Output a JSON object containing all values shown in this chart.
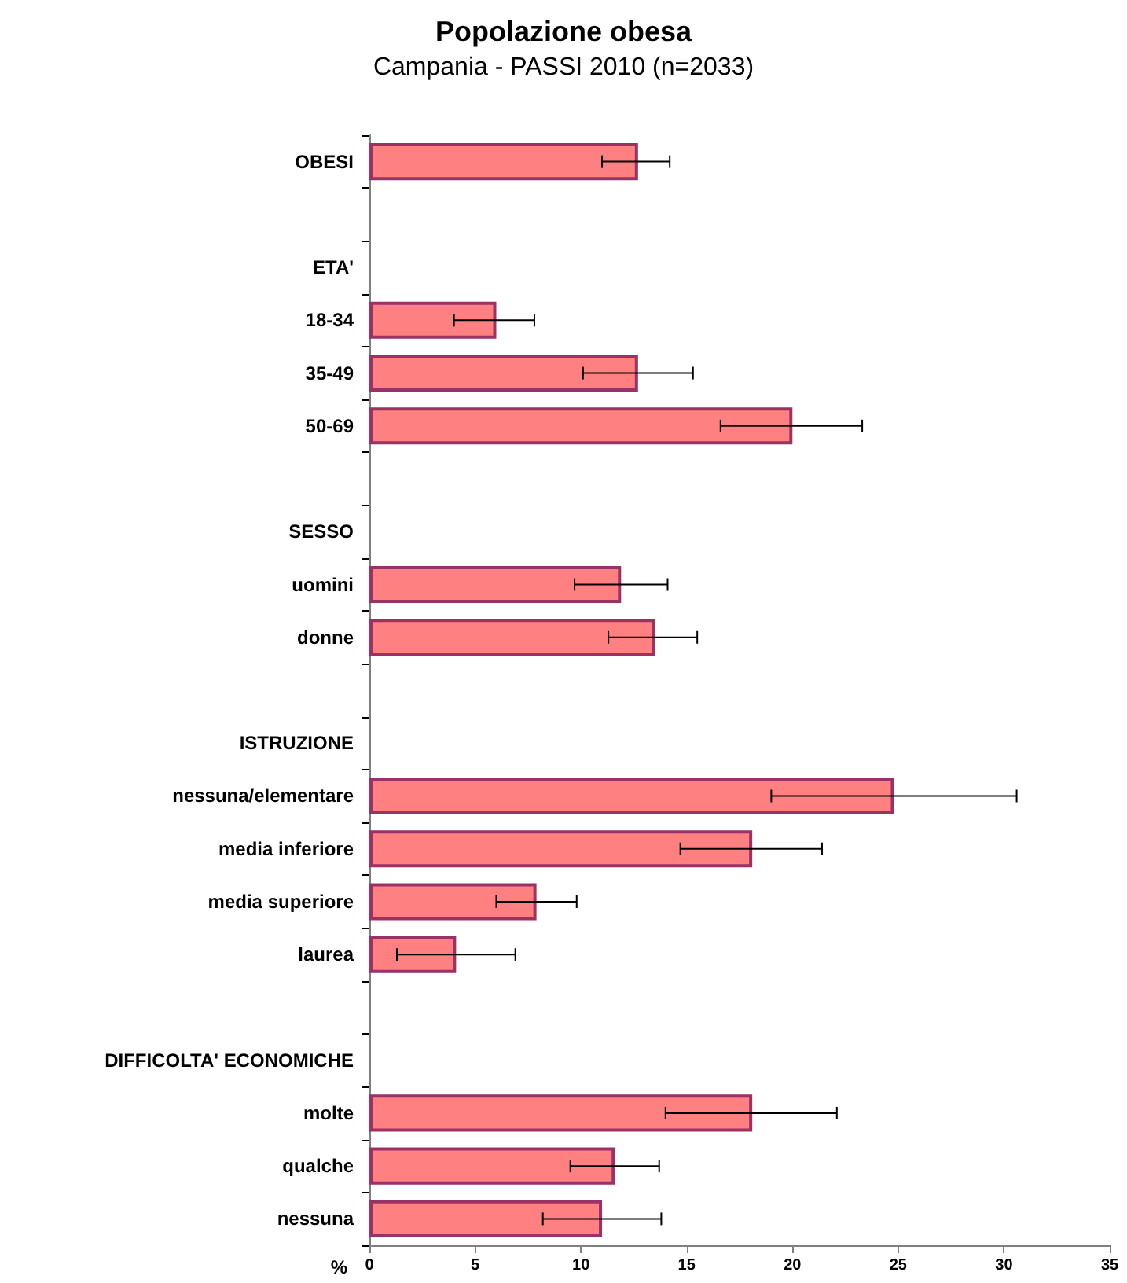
{
  "chart_data": {
    "type": "bar",
    "orientation": "horizontal",
    "title": "Popolazione obesa",
    "subtitle": "Campania - PASSI 2010 (n=2033)",
    "xlabel": "%",
    "categories": [
      "OBESI",
      null,
      "ETA'",
      "18-34",
      "35-49",
      "50-69",
      null,
      "SESSO",
      "uomini",
      "donne",
      null,
      "ISTRUZIONE",
      "nessuna/elementare",
      "media inferiore",
      "media superiore",
      "laurea",
      null,
      "DIFFICOLTA' ECONOMICHE",
      "molte",
      "qualche",
      "nessuna"
    ],
    "values": [
      12.7,
      null,
      null,
      6.0,
      12.7,
      20.0,
      null,
      null,
      11.9,
      13.5,
      null,
      null,
      24.8,
      18.1,
      7.9,
      4.1,
      null,
      null,
      18.1,
      11.6,
      11.0
    ],
    "errors": [
      [
        11.0,
        14.2
      ],
      null,
      null,
      [
        4.0,
        7.8
      ],
      [
        10.1,
        15.3
      ],
      [
        16.6,
        23.3
      ],
      null,
      null,
      [
        9.7,
        14.1
      ],
      [
        11.3,
        15.5
      ],
      null,
      null,
      [
        19.0,
        30.6
      ],
      [
        14.7,
        21.4
      ],
      [
        6.0,
        9.8
      ],
      [
        1.3,
        6.9
      ],
      null,
      null,
      [
        14.0,
        22.1
      ],
      [
        9.5,
        13.7
      ],
      [
        8.2,
        13.8
      ]
    ],
    "color": "#ff8080",
    "xlim": [
      0,
      35
    ],
    "xticks": [
      0,
      5,
      10,
      15,
      20,
      25,
      30,
      35
    ],
    "grid": false
  }
}
